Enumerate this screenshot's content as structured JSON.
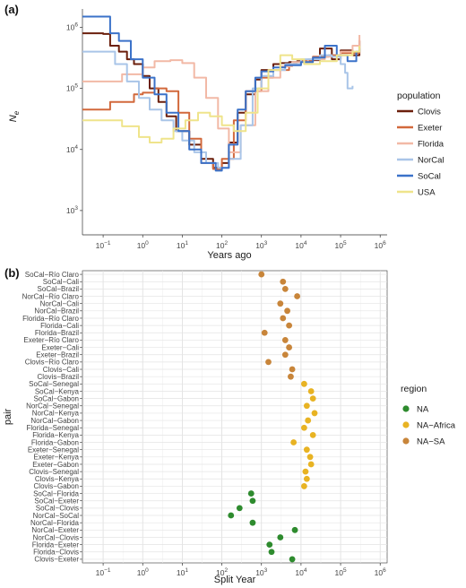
{
  "figure": {
    "panel_a_label": "(a)",
    "panel_b_label": "(b)"
  },
  "chart_data": [
    {
      "type": "line",
      "xlabel": "Years ago",
      "ylabel": "N",
      "ylabel_subscript": "e",
      "x_scale": "log10",
      "y_scale": "log10",
      "xlim": [
        0.03,
        1500000
      ],
      "ylim": [
        400,
        2000000
      ],
      "x_ticks": [
        {
          "value": 0.1,
          "base": "10",
          "exp": "−1"
        },
        {
          "value": 1,
          "base": "10",
          "exp": "0"
        },
        {
          "value": 10,
          "base": "10",
          "exp": "1"
        },
        {
          "value": 100,
          "base": "10",
          "exp": "2"
        },
        {
          "value": 1000,
          "base": "10",
          "exp": "3"
        },
        {
          "value": 10000,
          "base": "10",
          "exp": "4"
        },
        {
          "value": 100000,
          "base": "10",
          "exp": "5"
        },
        {
          "value": 1000000,
          "base": "10",
          "exp": "6"
        }
      ],
      "y_ticks": [
        {
          "value": 1000,
          "base": "10",
          "exp": "3"
        },
        {
          "value": 10000,
          "base": "10",
          "exp": "4"
        },
        {
          "value": 100000,
          "base": "10",
          "exp": "5"
        },
        {
          "value": 1000000,
          "base": "10",
          "exp": "6"
        }
      ],
      "grid": false,
      "legend": {
        "title": "population",
        "placement": "right"
      },
      "series": [
        {
          "name": "Clovis",
          "color": "#6b1f0c",
          "x": [
            0.03,
            0.1,
            0.15,
            0.25,
            0.4,
            0.6,
            1,
            1.5,
            2.5,
            4,
            7,
            15,
            30,
            60,
            100,
            150,
            250,
            400,
            700,
            1000,
            2000,
            3000,
            5000,
            8000,
            15000,
            30000,
            60000,
            100000,
            200000,
            300000
          ],
          "y": [
            800000,
            780000,
            500000,
            400000,
            300000,
            250000,
            160000,
            100000,
            60000,
            35000,
            20000,
            12000,
            7000,
            5000,
            6000,
            13000,
            40000,
            80000,
            140000,
            200000,
            250000,
            260000,
            270000,
            280000,
            290000,
            450000,
            300000,
            420000,
            350000,
            600000
          ]
        },
        {
          "name": "Exeter",
          "color": "#d2693c",
          "x": [
            0.03,
            0.08,
            0.15,
            0.3,
            0.6,
            1,
            2,
            4,
            8,
            15,
            30,
            60,
            100,
            200,
            400,
            1000,
            2000,
            5000,
            10000,
            20000,
            50000,
            100000,
            300000
          ],
          "y": [
            45000,
            45000,
            60000,
            60000,
            80000,
            85000,
            100000,
            90000,
            40000,
            15000,
            6000,
            4800,
            7000,
            30000,
            90000,
            150000,
            200000,
            250000,
            280000,
            330000,
            350000,
            380000,
            620000
          ]
        },
        {
          "name": "Florida",
          "color": "#f2b9a6",
          "x": [
            0.03,
            0.1,
            0.3,
            1,
            2,
            5,
            10,
            20,
            40,
            80,
            150,
            300,
            700,
            1500,
            3000,
            6000,
            15000,
            40000,
            100000,
            200000,
            300000
          ],
          "y": [
            130000,
            130000,
            170000,
            220000,
            280000,
            290000,
            260000,
            150000,
            70000,
            22000,
            9000,
            25000,
            90000,
            150000,
            230000,
            270000,
            300000,
            330000,
            400000,
            500000,
            750000
          ]
        },
        {
          "name": "NorCal",
          "color": "#a9c5e8",
          "x": [
            0.03,
            0.1,
            0.2,
            0.4,
            0.8,
            1.5,
            3,
            6,
            10,
            20,
            40,
            80,
            150,
            300,
            600,
            1000,
            2000,
            4000,
            10000,
            30000,
            60000,
            100000,
            130000,
            150000,
            200000
          ],
          "y": [
            400000,
            400000,
            250000,
            130000,
            70000,
            45000,
            30000,
            20000,
            14000,
            9000,
            6000,
            5000,
            7000,
            25000,
            100000,
            160000,
            200000,
            250000,
            300000,
            350000,
            330000,
            250000,
            180000,
            100000,
            110000
          ]
        },
        {
          "name": "SoCal",
          "color": "#3b72c9",
          "x": [
            0.03,
            0.1,
            0.15,
            0.25,
            0.5,
            1,
            2,
            4,
            8,
            15,
            30,
            70,
            100,
            150,
            250,
            400,
            700,
            1000,
            2000,
            4000,
            10000,
            20000,
            40000,
            80000,
            150000,
            250000,
            300000
          ],
          "y": [
            1500000,
            1500000,
            800000,
            600000,
            300000,
            150000,
            80000,
            40000,
            20000,
            10000,
            6000,
            4500,
            5000,
            12000,
            45000,
            90000,
            150000,
            190000,
            220000,
            240000,
            270000,
            320000,
            500000,
            350000,
            280000,
            400000,
            450000
          ]
        },
        {
          "name": "USA",
          "color": "#efe48b",
          "x": [
            0.03,
            0.1,
            0.3,
            0.8,
            1.5,
            3,
            6,
            12,
            25,
            50,
            100,
            200,
            400,
            800,
            1500,
            3000,
            6000,
            12000,
            30000,
            80000,
            200000,
            300000
          ],
          "y": [
            30000,
            30000,
            24000,
            16000,
            13000,
            15000,
            22000,
            30000,
            40000,
            35000,
            25000,
            20000,
            40000,
            100000,
            200000,
            350000,
            300000,
            250000,
            280000,
            350000,
            400000,
            500000
          ]
        }
      ]
    },
    {
      "type": "scatter",
      "xlabel": "Split Year",
      "ylabel": "pair",
      "x_scale": "log10",
      "xlim": [
        0.03,
        1500000
      ],
      "x_ticks": [
        {
          "value": 0.1,
          "base": "10",
          "exp": "−1"
        },
        {
          "value": 1,
          "base": "10",
          "exp": "0"
        },
        {
          "value": 10,
          "base": "10",
          "exp": "1"
        },
        {
          "value": 100,
          "base": "10",
          "exp": "2"
        },
        {
          "value": 1000,
          "base": "10",
          "exp": "3"
        },
        {
          "value": 10000,
          "base": "10",
          "exp": "4"
        },
        {
          "value": 100000,
          "base": "10",
          "exp": "5"
        },
        {
          "value": 1000000,
          "base": "10",
          "exp": "6"
        }
      ],
      "grid": true,
      "background": "#ffffff",
      "legend": {
        "title": "region",
        "placement": "right"
      },
      "regions": [
        {
          "name": "NA",
          "color": "#2e8b2e"
        },
        {
          "name": "NA−Africa",
          "color": "#e8b323"
        },
        {
          "name": "NA−SA",
          "color": "#c8853a"
        }
      ],
      "points": [
        {
          "pair": "SoCal−Río Claro",
          "region": "NA−SA",
          "x": 1000
        },
        {
          "pair": "SoCal−Cali",
          "region": "NA−SA",
          "x": 3500
        },
        {
          "pair": "SoCal−Brazil",
          "region": "NA−SA",
          "x": 4000
        },
        {
          "pair": "NorCal−Río Claro",
          "region": "NA−SA",
          "x": 8000
        },
        {
          "pair": "NorCal−Cali",
          "region": "NA−SA",
          "x": 3000
        },
        {
          "pair": "NorCal−Brazil",
          "region": "NA−SA",
          "x": 4500
        },
        {
          "pair": "Florida−Río Claro",
          "region": "NA−SA",
          "x": 3500
        },
        {
          "pair": "Florida−Cali",
          "region": "NA−SA",
          "x": 5000
        },
        {
          "pair": "Florida−Brazil",
          "region": "NA−SA",
          "x": 1200
        },
        {
          "pair": "Exeter−Río Claro",
          "region": "NA−SA",
          "x": 4000
        },
        {
          "pair": "Exeter−Cali",
          "region": "NA−SA",
          "x": 5000
        },
        {
          "pair": "Exeter−Brazil",
          "region": "NA−SA",
          "x": 4000
        },
        {
          "pair": "Clovis−Río Claro",
          "region": "NA−SA",
          "x": 1500
        },
        {
          "pair": "Clovis−Cali",
          "region": "NA−SA",
          "x": 6000
        },
        {
          "pair": "Clovis−Brazil",
          "region": "NA−SA",
          "x": 5500
        },
        {
          "pair": "SoCal−Senegal",
          "region": "NA−Africa",
          "x": 12000
        },
        {
          "pair": "SoCal−Kenya",
          "region": "NA−Africa",
          "x": 18000
        },
        {
          "pair": "SoCal−Gabon",
          "region": "NA−Africa",
          "x": 20000
        },
        {
          "pair": "NorCal−Senegal",
          "region": "NA−Africa",
          "x": 14000
        },
        {
          "pair": "NorCal−Kenya",
          "region": "NA−Africa",
          "x": 22000
        },
        {
          "pair": "NorCal−Gabon",
          "region": "NA−Africa",
          "x": 15000
        },
        {
          "pair": "Florida−Senegal",
          "region": "NA−Africa",
          "x": 12000
        },
        {
          "pair": "Florida−Kenya",
          "region": "NA−Africa",
          "x": 20000
        },
        {
          "pair": "Florida−Gabon",
          "region": "NA−Africa",
          "x": 6500
        },
        {
          "pair": "Exeter−Senegal",
          "region": "NA−Africa",
          "x": 14000
        },
        {
          "pair": "Exeter−Kenya",
          "region": "NA−Africa",
          "x": 17000
        },
        {
          "pair": "Exeter−Gabon",
          "region": "NA−Africa",
          "x": 18000
        },
        {
          "pair": "Clovis−Senegal",
          "region": "NA−Africa",
          "x": 13000
        },
        {
          "pair": "Clovis−Kenya",
          "region": "NA−Africa",
          "x": 14000
        },
        {
          "pair": "Clovis−Gabon",
          "region": "NA−Africa",
          "x": 12000
        },
        {
          "pair": "SoCal−Florida",
          "region": "NA",
          "x": 550
        },
        {
          "pair": "SoCal−Exeter",
          "region": "NA",
          "x": 600
        },
        {
          "pair": "SoCal−Clovis",
          "region": "NA",
          "x": 280
        },
        {
          "pair": "NorCal−SoCal",
          "region": "NA",
          "x": 170
        },
        {
          "pair": "NorCal−Florida",
          "region": "NA",
          "x": 600
        },
        {
          "pair": "NorCal−Exeter",
          "region": "NA",
          "x": 7000
        },
        {
          "pair": "NorCal−Clovis",
          "region": "NA",
          "x": 3000
        },
        {
          "pair": "Florida−Exeter",
          "region": "NA",
          "x": 1600
        },
        {
          "pair": "Florida−Clovis",
          "region": "NA",
          "x": 1800
        },
        {
          "pair": "Clovis−Exeter",
          "region": "NA",
          "x": 6000
        }
      ]
    }
  ]
}
